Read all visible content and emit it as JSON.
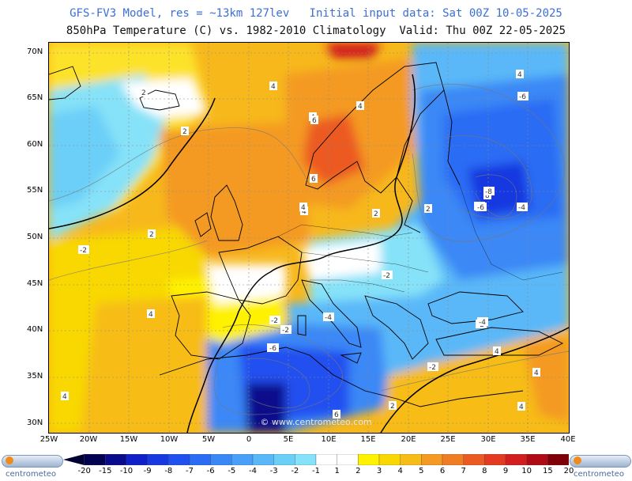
{
  "header": {
    "title1": "GFS-FV3 Model, res = ~13km 127lev   Initial input data: Sat 00Z 10-05-2025",
    "title2": "850hPa Temperature (C) vs. 1982-2010 Climatology  Valid: Thu 00Z 22-05-2025"
  },
  "axes": {
    "lat_labels": [
      "70N",
      "65N",
      "60N",
      "55N",
      "50N",
      "45N",
      "40N",
      "35N",
      "30N"
    ],
    "lon_labels": [
      "25W",
      "20W",
      "15W",
      "10W",
      "5W",
      "0",
      "5E",
      "10E",
      "15E",
      "20E",
      "25E",
      "30E",
      "35E",
      "40E"
    ]
  },
  "map": {
    "lat_range": [
      29,
      71
    ],
    "lon_range": [
      -25,
      40
    ],
    "grid": true,
    "projection": "equirectangular",
    "watermark": "© www.centrometeo.com",
    "contour_labels": [
      "2",
      "2",
      "4",
      "4",
      "4",
      "6",
      "4",
      "6",
      "8",
      "4",
      "2",
      "2",
      "-2",
      "-2",
      "-2",
      "-4",
      "-6",
      "-4",
      "-6",
      "-8",
      "-6",
      "-4",
      "-2",
      "-2",
      "-4",
      "-6",
      "-2",
      "4",
      "4",
      "2",
      "6",
      "4",
      "4",
      "4",
      "2",
      "4"
    ]
  },
  "colorbar": {
    "labels": [
      "-20",
      "-15",
      "-10",
      "-9",
      "-8",
      "-7",
      "-6",
      "-5",
      "-4",
      "-3",
      "-2",
      "-1",
      "1",
      "2",
      "3",
      "4",
      "5",
      "6",
      "7",
      "8",
      "9",
      "10",
      "15",
      "20"
    ],
    "colors": [
      "#020250",
      "#0a0a8c",
      "#1020c8",
      "#1838e0",
      "#2050f0",
      "#2a6cf4",
      "#3a88f6",
      "#4aa0f8",
      "#5ab8f8",
      "#6ccff8",
      "#86e2f8",
      "#ffffff",
      "#ffffff",
      "#fff200",
      "#f8d800",
      "#f7bc18",
      "#f49a22",
      "#f07c24",
      "#ec5a24",
      "#e43a22",
      "#d21e1e",
      "#b00a14",
      "#800008"
    ]
  },
  "logos": {
    "left": "centrometeo",
    "right": "centrometeo"
  }
}
